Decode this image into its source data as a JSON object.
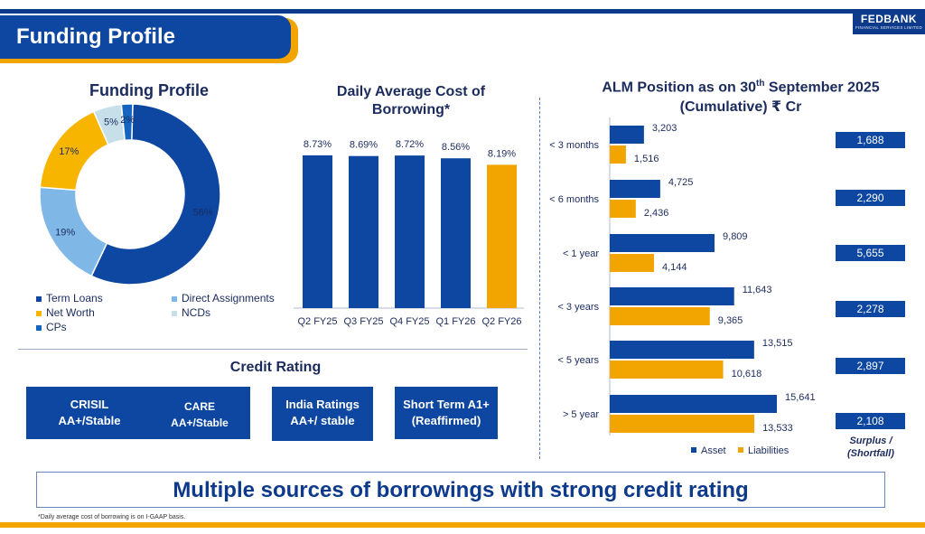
{
  "page": {
    "title": "Funding Profile",
    "logo_main": "FEDBANK",
    "logo_sub": "FINANCIAL SERVICES LIMITED",
    "banner": "Multiple sources of borrowings with strong credit rating",
    "footnote": "*Daily average cost of borrowing is on I-GAAP basis."
  },
  "colors": {
    "navy": "#0d47a1",
    "orange": "#f2a500",
    "light_blue": "#7fb8e6",
    "pale_blue": "#c7dfe8",
    "text": "#1b2b5e"
  },
  "chart_data": [
    {
      "type": "pie",
      "title": "Funding Profile",
      "donut": true,
      "slices": [
        {
          "name": "Term Loans",
          "value": 56,
          "label": "56%",
          "color": "#0d47a1"
        },
        {
          "name": "Direct Assignments",
          "value": 19,
          "label": "19%",
          "color": "#7fb8e6"
        },
        {
          "name": "Net Worth",
          "value": 17,
          "label": "17%",
          "color": "#f7b500"
        },
        {
          "name": "NCDs",
          "value": 5,
          "label": "5%",
          "color": "#c7dfe8"
        },
        {
          "name": "CPs",
          "value": 2,
          "label": "2%",
          "color": "#1565c0"
        }
      ],
      "legend": [
        "Term Loans",
        "Direct Assignments",
        "Net Worth",
        "NCDs",
        "CPs"
      ]
    },
    {
      "type": "bar",
      "title": "Daily Average Cost of Borrowing*",
      "categories": [
        "Q2 FY25",
        "Q3 FY25",
        "Q4 FY25",
        "Q1 FY26",
        "Q2 FY26"
      ],
      "values": [
        8.73,
        8.69,
        8.72,
        8.56,
        8.19
      ],
      "labels": [
        "8.73%",
        "8.69%",
        "8.72%",
        "8.56%",
        "8.19%"
      ],
      "highlight_index": 4,
      "ylim": [
        0,
        9.5
      ]
    },
    {
      "type": "bar",
      "orientation": "horizontal",
      "title": "ALM Position as on 30th September 2025 (Cumulative) ₹ Cr",
      "title_line1_pre": "ALM Position as on 30",
      "title_line1_sup": "th",
      "title_line1_post": " September 2025",
      "title_line2": "(Cumulative) ₹ Cr",
      "categories": [
        "< 3 months",
        "< 6 months",
        "< 1 year",
        "< 3 years",
        "< 5 years",
        "> 5 year"
      ],
      "series": [
        {
          "name": "Asset",
          "values": [
            3203,
            4725,
            9809,
            11643,
            13515,
            15641
          ],
          "labels": [
            "3,203",
            "4,725",
            "9,809",
            "11,643",
            "13,515",
            "15,641"
          ],
          "color": "#0d47a1"
        },
        {
          "name": "Liabilities",
          "values": [
            1516,
            2436,
            4144,
            9365,
            10618,
            13533
          ],
          "labels": [
            "1,516",
            "2,436",
            "4,144",
            "9,365",
            "10,618",
            "13,533"
          ],
          "color": "#f2a500"
        }
      ],
      "surplus": [
        "1,688",
        "2,290",
        "5,655",
        "2,278",
        "2,897",
        "2,108"
      ],
      "surplus_label_1": "Surplus /",
      "surplus_label_2": "(Shortfall)"
    }
  ],
  "credit_rating": {
    "title": "Credit Rating",
    "items": [
      {
        "agency": "CRISIL",
        "rating": "AA+/Stable"
      },
      {
        "agency": "CARE",
        "rating": "AA+/Stable"
      },
      {
        "agency": "India Ratings",
        "rating": "AA+/ stable"
      },
      {
        "agency": "Short Term A1+",
        "rating": "(Reaffirmed)"
      }
    ]
  }
}
